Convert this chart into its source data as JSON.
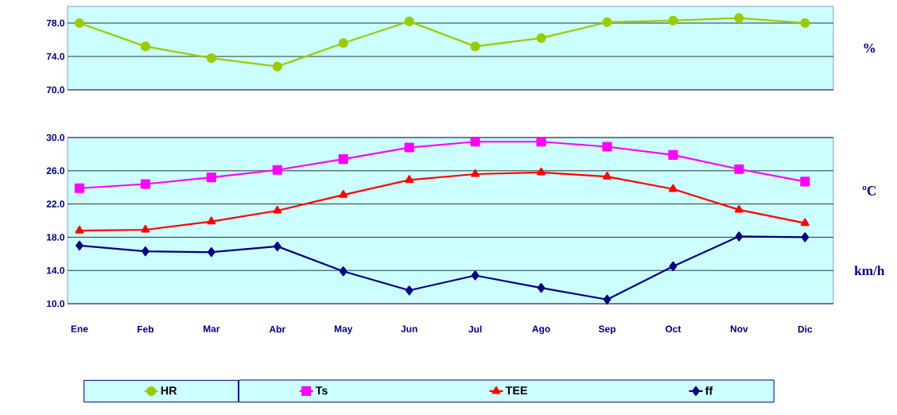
{
  "chart_data": [
    {
      "type": "line",
      "categories": [
        null,
        null,
        null,
        null,
        null,
        null,
        null,
        null,
        null,
        null,
        null,
        null
      ],
      "series": [
        {
          "name": "HR",
          "color": "#99cc00",
          "marker": "circle",
          "values": [
            78.0,
            75.2,
            73.8,
            72.8,
            75.6,
            78.2,
            75.2,
            76.2,
            78.1,
            78.3,
            78.6,
            78.0
          ]
        }
      ],
      "ylim": [
        70,
        80
      ],
      "yticks": [
        {
          "value": 70,
          "label": "70.0"
        },
        {
          "value": 74,
          "label": "74.0"
        },
        {
          "value": 78,
          "label": "78.0"
        }
      ],
      "grid": "y",
      "tick_labels": "y",
      "legend": "bottom",
      "annotations": [
        "%"
      ]
    },
    {
      "type": "line",
      "categories": [
        "Ene",
        "Feb",
        "Mar",
        "Abr",
        "May",
        "Jun",
        "Jul",
        "Ago",
        "Sep",
        "Oct",
        "Nov",
        "Dic"
      ],
      "series": [
        {
          "name": "Ts",
          "color": "#ff00ff",
          "marker": "square",
          "values": [
            23.9,
            24.4,
            25.2,
            26.1,
            27.4,
            28.8,
            29.5,
            29.5,
            28.9,
            27.9,
            26.2,
            24.7
          ]
        },
        {
          "name": "TEE",
          "color": "#ff0000",
          "marker": "triangle",
          "values": [
            18.8,
            18.9,
            19.9,
            21.2,
            23.1,
            24.9,
            25.6,
            25.8,
            25.3,
            23.8,
            21.3,
            19.7
          ]
        },
        {
          "name": "ff",
          "color": "#000080",
          "marker": "diamond",
          "values": [
            17.0,
            16.3,
            16.2,
            16.9,
            13.9,
            11.6,
            13.4,
            11.9,
            10.5,
            14.5,
            18.1,
            18.0
          ]
        }
      ],
      "ylim": [
        10,
        30
      ],
      "yticks": [
        {
          "value": 10,
          "label": "10.0"
        },
        {
          "value": 14,
          "label": "14.0"
        },
        {
          "value": 18,
          "label": "18.0"
        },
        {
          "value": 22,
          "label": "22.0"
        },
        {
          "value": 26,
          "label": "26.0"
        },
        {
          "value": 30,
          "label": "30.0"
        }
      ],
      "grid": "y",
      "legend": "bottom",
      "annotations": [
        "ºC",
        "km/h"
      ]
    }
  ]
}
